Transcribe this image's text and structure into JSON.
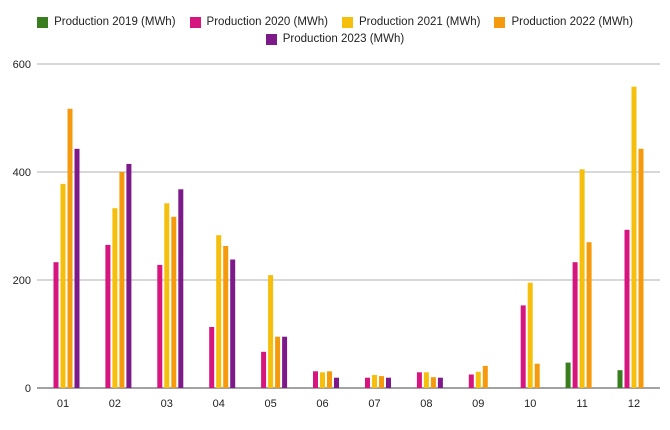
{
  "chart_data": {
    "type": "bar",
    "categories": [
      "01",
      "02",
      "03",
      "04",
      "05",
      "06",
      "07",
      "08",
      "09",
      "10",
      "11",
      "12"
    ],
    "series": [
      {
        "name": "Production 2019 (MWh)",
        "color": "#3a7d1e",
        "values": [
          null,
          null,
          null,
          null,
          null,
          null,
          null,
          null,
          null,
          null,
          47,
          33
        ]
      },
      {
        "name": "Production 2020 (MWh)",
        "color": "#d6157f",
        "values": [
          233,
          265,
          228,
          113,
          67,
          31,
          19,
          29,
          25,
          153,
          233,
          293
        ]
      },
      {
        "name": "Production 2021 (MWh)",
        "color": "#f5bf0c",
        "values": [
          378,
          333,
          342,
          283,
          209,
          29,
          24,
          29,
          30,
          195,
          405,
          558
        ]
      },
      {
        "name": "Production 2022 (MWh)",
        "color": "#f59a0c",
        "values": [
          517,
          400,
          317,
          263,
          95,
          31,
          22,
          20,
          41,
          45,
          270,
          443
        ]
      },
      {
        "name": "Production 2023 (MWh)",
        "color": "#7d1a8a",
        "values": [
          443,
          415,
          368,
          238,
          95,
          19,
          19,
          19,
          null,
          null,
          null,
          null
        ]
      }
    ],
    "yticks": [
      0,
      200,
      400,
      600
    ],
    "ylim": [
      0,
      600
    ],
    "grid": true,
    "legend_position": "top-center"
  }
}
